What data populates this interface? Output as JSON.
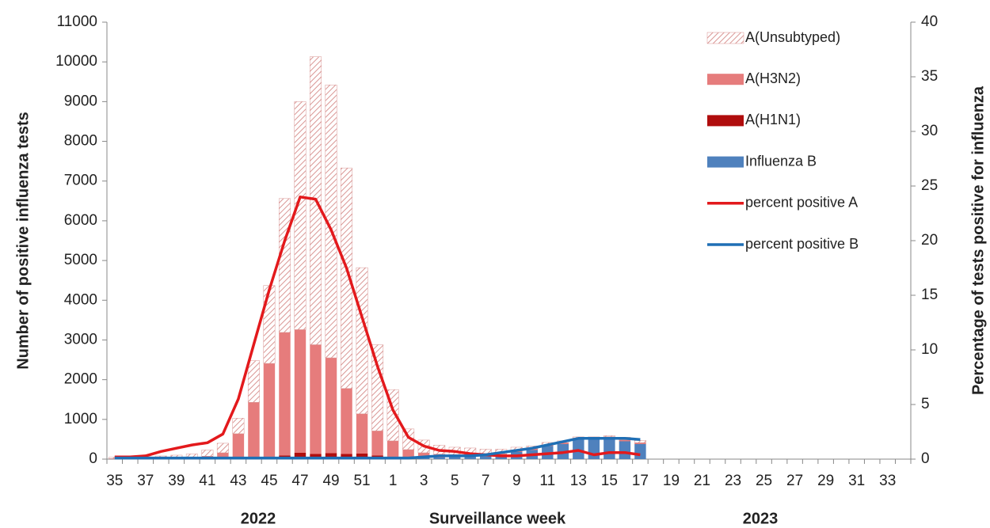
{
  "chart_data": {
    "type": "bar",
    "y_title": "Number of positive influenza tests",
    "y2_title": "Percentage of tests positive for influenza",
    "x_title": "Surveillance  week",
    "annotations": [
      "2022",
      "2023"
    ],
    "categories": [
      "35",
      null,
      "37",
      null,
      "39",
      null,
      "41",
      null,
      "43",
      null,
      "45",
      null,
      "47",
      null,
      "49",
      null,
      "51",
      null,
      "1",
      null,
      "3",
      null,
      "5",
      null,
      "7",
      null,
      "9",
      null,
      "11",
      null,
      "13",
      null,
      "15",
      null,
      "17",
      null,
      "19",
      null,
      "21",
      null,
      "23",
      null,
      "25",
      null,
      "27",
      null,
      "29",
      null,
      "31",
      null,
      "33",
      null
    ],
    "ylim": [
      0,
      11000
    ],
    "yticks": [
      0,
      1000,
      2000,
      3000,
      4000,
      5000,
      6000,
      7000,
      8000,
      9000,
      10000,
      11000
    ],
    "y2lim": [
      0,
      40
    ],
    "y2ticks": [
      0,
      5,
      10,
      15,
      20,
      25,
      30,
      35,
      40
    ],
    "series": [
      {
        "name": "A(Unsubtyped)",
        "type": "bar",
        "hatch": true,
        "color": "#d99694",
        "values": [
          35,
          35,
          40,
          55,
          65,
          85,
          155,
          240,
          390,
          1050,
          1960,
          3370,
          5740,
          7250,
          6870,
          5550,
          3680,
          2170,
          1290,
          520,
          320,
          225,
          185,
          165,
          135,
          115,
          85,
          65,
          55,
          45,
          25,
          25,
          25,
          65,
          55,
          null,
          null,
          null,
          null,
          null,
          null,
          null,
          null,
          null,
          null,
          null,
          null,
          null,
          null,
          null,
          null,
          null
        ]
      },
      {
        "name": "A(H3N2)",
        "type": "bar",
        "color": "#e67c7c",
        "values": [
          10,
          10,
          15,
          20,
          30,
          40,
          70,
          150,
          620,
          1400,
          2350,
          3100,
          3100,
          2750,
          2400,
          1650,
          1000,
          620,
          400,
          200,
          120,
          80,
          60,
          50,
          40,
          30,
          30,
          30,
          30,
          30,
          30,
          30,
          30,
          30,
          30,
          null,
          null,
          null,
          null,
          null,
          null,
          null,
          null,
          null,
          null,
          null,
          null,
          null,
          null,
          null,
          null,
          null
        ]
      },
      {
        "name": "A(H1N1)",
        "type": "bar",
        "color": "#b00d0d",
        "values": [
          0,
          0,
          0,
          0,
          0,
          0,
          0,
          5,
          10,
          20,
          50,
          80,
          150,
          120,
          140,
          120,
          130,
          80,
          50,
          20,
          10,
          5,
          5,
          5,
          5,
          5,
          5,
          5,
          5,
          5,
          5,
          5,
          5,
          5,
          5,
          null,
          null,
          null,
          null,
          null,
          null,
          null,
          null,
          null,
          null,
          null,
          null,
          null,
          null,
          null,
          null,
          null
        ]
      },
      {
        "name": "Influenza B",
        "type": "bar",
        "color": "#4f81bd",
        "values": [
          5,
          5,
          5,
          5,
          5,
          5,
          5,
          5,
          10,
          10,
          10,
          10,
          10,
          10,
          10,
          10,
          10,
          10,
          10,
          20,
          30,
          40,
          50,
          60,
          70,
          100,
          180,
          230,
          330,
          380,
          500,
          500,
          530,
          450,
          380,
          null,
          null,
          null,
          null,
          null,
          null,
          null,
          null,
          null,
          null,
          null,
          null,
          null,
          null,
          null,
          null,
          null
        ]
      },
      {
        "name": "percent positive A",
        "type": "line",
        "axis": "y2",
        "color": "#e3191c",
        "values": [
          0.2,
          0.2,
          0.3,
          0.7,
          1.0,
          1.3,
          1.5,
          2.3,
          5.5,
          10.5,
          15.5,
          20,
          24,
          23.8,
          21,
          17.5,
          13,
          8.5,
          4.5,
          2,
          1.2,
          0.8,
          0.7,
          0.5,
          0.4,
          0.3,
          0.3,
          0.4,
          0.5,
          0.6,
          0.8,
          0.4,
          0.6,
          0.6,
          0.4,
          null,
          null,
          null,
          null,
          null,
          null,
          null,
          null,
          null,
          null,
          null,
          null,
          null,
          null,
          null,
          null,
          null
        ]
      },
      {
        "name": "percent positive B",
        "type": "line",
        "axis": "y2",
        "color": "#1f6fb5",
        "values": [
          0.1,
          0.1,
          0.1,
          0.1,
          0.1,
          0.1,
          0.1,
          0.1,
          0.1,
          0.1,
          0.1,
          0.1,
          0.1,
          0.1,
          0.1,
          0.1,
          0.1,
          0.1,
          0.1,
          0.1,
          0.2,
          0.3,
          0.3,
          0.3,
          0.4,
          0.6,
          0.8,
          1.0,
          1.3,
          1.6,
          1.9,
          1.9,
          1.9,
          1.9,
          1.8,
          null,
          null,
          null,
          null,
          null,
          null,
          null,
          null,
          null,
          null,
          null,
          null,
          null,
          null,
          null,
          null,
          null
        ]
      }
    ]
  }
}
